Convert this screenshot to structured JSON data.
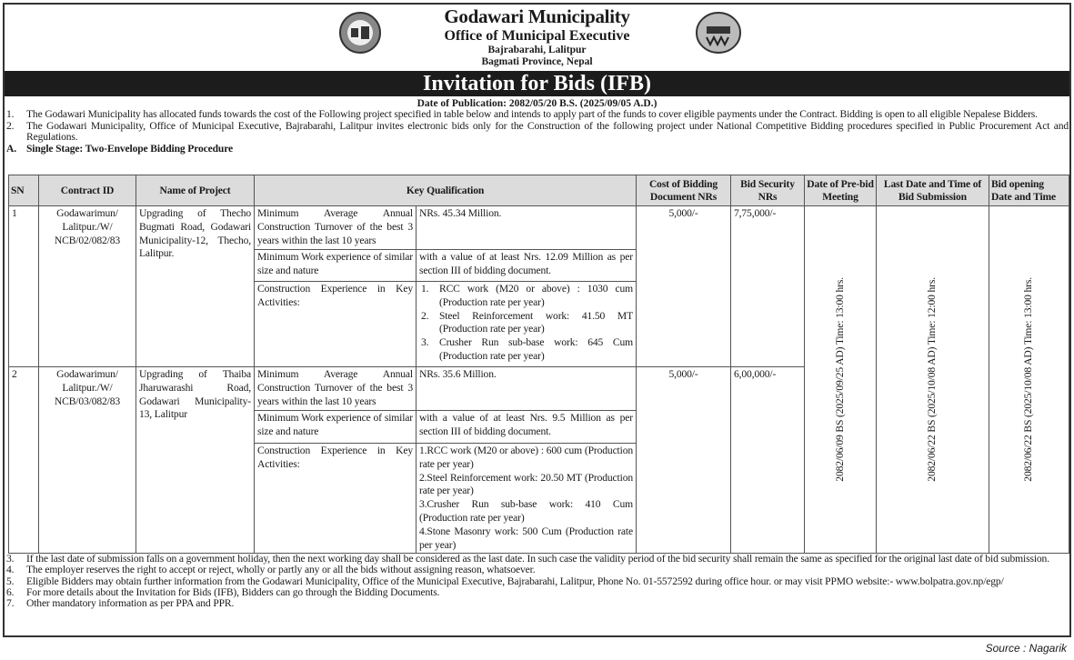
{
  "header": {
    "org": "Godawari Municipality",
    "office": "Office of Municipal Executive",
    "address1": "Bajrabarahi, Lalitpur",
    "address2": "Bagmati Province, Nepal",
    "title": "Invitation for Bids (IFB)",
    "publication": "Date of Publication:  2082/05/20 B.S. (2025/09/05 A.D.)"
  },
  "intro": [
    {
      "num": "1.",
      "text": "The Godawari Municipality has allocated funds towards the cost of the Following project specified in table below and intends to apply part of the funds to cover eligible payments under the Contract. Bidding is open to all eligible Nepalese Bidders."
    },
    {
      "num": "2.",
      "text": "The Godawari Municipality, Office of  Municipal Executive, Bajrabarahi, Lalitpur invites electronic bids only for the Construction of the following project under National Competitive Bidding procedures specified in Public Procurement Act and Regulations."
    },
    {
      "num": "A.",
      "text": "Single Stage: Two-Envelope Bidding Procedure"
    }
  ],
  "table": {
    "headers": [
      "SN",
      "Contract ID",
      "Name of Project",
      "Key Qualification",
      "Cost of Bidding Document NRs",
      "Bid Security NRs",
      "Date of  Pre-bid Meeting",
      "Last Date and Time of Bid Submission",
      "Bid opening Date and Time"
    ],
    "prebid": "2082/06/09 BS (2025/09/25 AD) Time: 13:00 hrs.",
    "submission": "2082/06/22 BS (2025/10/08 AD) Time: 12:00 hrs.",
    "opening": "2082/06/22 BS (2025/10/08 AD) Time: 13:00 hrs.",
    "rows": [
      {
        "sn": "1",
        "id": "Godawarimun/ Lalitpur./W/ NCB/02/082/83",
        "project": "Upgrading of Thecho Bugmati Road, Godawari Municipality-12, Thecho, Lalitpur.",
        "cost": "5,000/-",
        "security": "7,75,000/-",
        "q": [
          {
            "label": "Minimum Average Annual Construction Turnover of the best 3 years within the last 10 years",
            "value": "NRs. 45.34  Million."
          },
          {
            "label": "Minimum Work experience of similar size and nature",
            "value": "with a value of at least Nrs. 12.09 Million as per section III of bidding document."
          },
          {
            "label": "Construction Experience in Key Activities:",
            "items": [
              {
                "n": "1.",
                "t": "RCC work (M20 or above) : 1030  cum (Production rate per year)"
              },
              {
                "n": "2.",
                "t": "Steel Reinforcement work: 41.50 MT (Production rate per year)"
              },
              {
                "n": "3.",
                "t": "Crusher Run sub-base work: 645 Cum (Production rate per year)"
              }
            ]
          }
        ]
      },
      {
        "sn": "2",
        "id": "Godawarimun/ Lalitpur./W/ NCB/03/082/83",
        "project": "Upgrading of Thaiba Jharuwarashi Road, Godawari Municipality-13, Lalitpur",
        "cost": "5,000/-",
        "security": "6,00,000/-",
        "q": [
          {
            "label": "Minimum Average Annual Construction Turnover of the best 3 years within the last 10 years",
            "value": "NRs. 35.6  Million."
          },
          {
            "label": "Minimum Work experience of similar size and nature",
            "value": "with a value of at least Nrs. 9.5 Million as per section III of bidding document."
          },
          {
            "label": "Construction Experience in Key Activities:",
            "lines": [
              "1.RCC work (M20 or above) : 600  cum (Production rate per year)",
              "2.Steel Reinforcement work: 20.50 MT (Production rate per year)",
              "3.Crusher Run sub-base work: 410 Cum (Production rate per year)",
              "4.Stone Masonry work: 500 Cum (Production rate per year)"
            ]
          }
        ]
      }
    ]
  },
  "notes": [
    {
      "num": "3.",
      "text": "If the last date of submission falls on a government holiday, then the next working day shall be considered as the last date. In such case the validity period of the bid security shall remain the same as specified for the original last date of bid submission."
    },
    {
      "num": "4.",
      "text": "The employer reserves the right to accept or reject, wholly or partly any or all the bids without assigning reason, whatsoever."
    },
    {
      "num": "5.",
      "text": "Eligible Bidders may obtain further information from the Godawari Municipality, Office of the Municipal Executive, Bajrabarahi, Lalitpur, Phone No. 01-5572592 during office hour. or   may visit PPMO website:- www.bolpatra.gov.np/egp/"
    },
    {
      "num": "6.",
      "text": "For more details about the Invitation for Bids (IFB), Bidders can go through the Bidding Documents."
    },
    {
      "num": "7.",
      "text": "Other mandatory information as per PPA and PPR."
    }
  ],
  "source": "Source : Nagarik",
  "icons": {
    "left_logo": "nepal-emblem",
    "right_logo": "municipality-seal"
  }
}
